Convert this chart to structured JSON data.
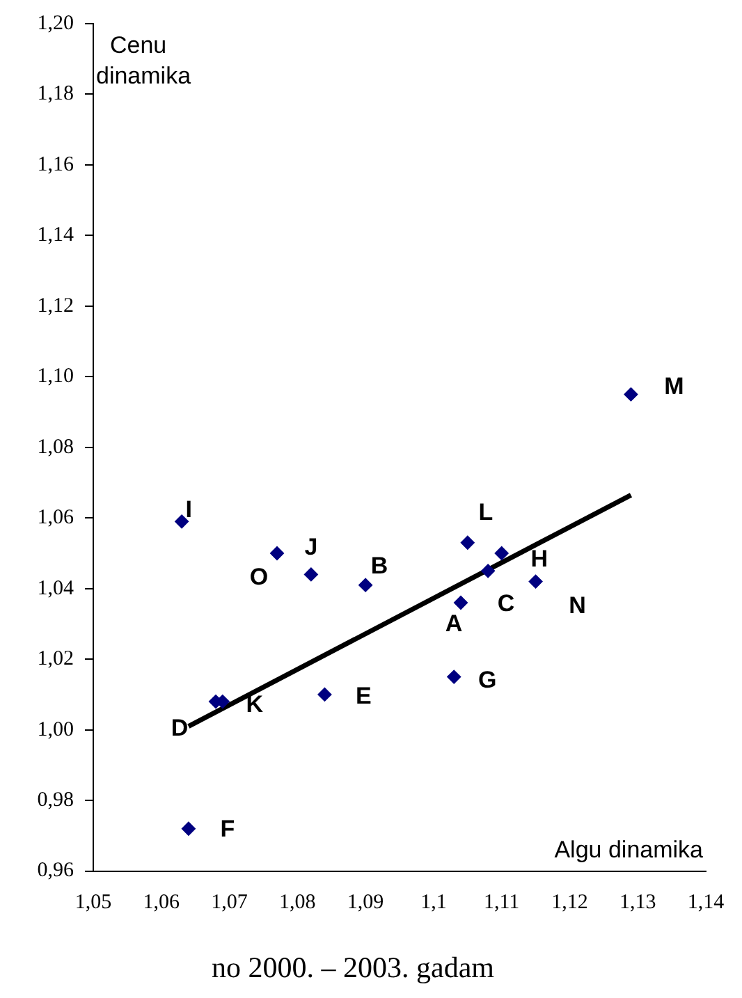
{
  "chart_data": {
    "type": "scatter",
    "subtitle": "no 2000. – 2003. gadam",
    "xlabel": "Algu dinamika",
    "ylabel": "Cenu dinamika",
    "xlim": [
      1.05,
      1.14
    ],
    "xticks": [
      {
        "value": 1.05,
        "label": "1,05"
      },
      {
        "value": 1.06,
        "label": "1,06"
      },
      {
        "value": 1.07,
        "label": "1,07"
      },
      {
        "value": 1.08,
        "label": "1,08"
      },
      {
        "value": 1.09,
        "label": "1,09"
      },
      {
        "value": 1.1,
        "label": "1,1"
      },
      {
        "value": 1.11,
        "label": "1,11"
      },
      {
        "value": 1.12,
        "label": "1,12"
      },
      {
        "value": 1.13,
        "label": "1,13"
      },
      {
        "value": 1.14,
        "label": "1,14"
      }
    ],
    "ylim": [
      0.96,
      1.2
    ],
    "yticks": [
      {
        "value": 0.96,
        "label": "0,96"
      },
      {
        "value": 0.98,
        "label": "0,98"
      },
      {
        "value": 1.0,
        "label": "1,00"
      },
      {
        "value": 1.02,
        "label": "1,02"
      },
      {
        "value": 1.04,
        "label": "1,04"
      },
      {
        "value": 1.06,
        "label": "1,06"
      },
      {
        "value": 1.08,
        "label": "1,08"
      },
      {
        "value": 1.1,
        "label": "1,10"
      },
      {
        "value": 1.12,
        "label": "1,12"
      },
      {
        "value": 1.14,
        "label": "1,14"
      },
      {
        "value": 1.16,
        "label": "1,16"
      },
      {
        "value": 1.18,
        "label": "1,18"
      },
      {
        "value": 1.2,
        "label": "1,20"
      }
    ],
    "grid": false,
    "legend": false,
    "marker": "diamond",
    "series": [
      {
        "color": "#000080",
        "x": [
          1.063,
          1.077,
          1.082,
          1.09,
          1.105,
          1.104,
          1.108,
          1.11,
          1.115,
          1.129,
          1.103,
          1.084,
          1.069,
          1.068,
          1.064
        ],
        "values": [
          1.059,
          1.05,
          1.044,
          1.041,
          1.053,
          1.036,
          1.045,
          1.05,
          1.042,
          1.095,
          1.015,
          1.01,
          1.008,
          1.008,
          0.972
        ]
      },
      {
        "type": "line",
        "color": "#000000",
        "x": [
          1.064,
          1.129
        ],
        "values": [
          1.001,
          1.0665
        ],
        "marker": "none"
      }
    ],
    "annotations": [
      {
        "text": "I",
        "x": 1.063,
        "y": 1.059
      },
      {
        "text": "O",
        "x": 1.077,
        "y": 1.05
      },
      {
        "text": "J",
        "x": 1.082,
        "y": 1.044
      },
      {
        "text": "B",
        "x": 1.09,
        "y": 1.041
      },
      {
        "text": "L",
        "x": 1.105,
        "y": 1.053
      },
      {
        "text": "A",
        "x": 1.104,
        "y": 1.036
      },
      {
        "text": "C",
        "x": 1.108,
        "y": 1.045
      },
      {
        "text": "H",
        "x": 1.11,
        "y": 1.05
      },
      {
        "text": "N",
        "x": 1.115,
        "y": 1.042
      },
      {
        "text": "M",
        "x": 1.129,
        "y": 1.095
      },
      {
        "text": "G",
        "x": 1.103,
        "y": 1.015
      },
      {
        "text": "E",
        "x": 1.084,
        "y": 1.01
      },
      {
        "text": "K",
        "x": 1.069,
        "y": 1.008
      },
      {
        "text": "D",
        "x": 1.068,
        "y": 1.008
      },
      {
        "text": "F",
        "x": 1.064,
        "y": 0.972
      }
    ]
  }
}
